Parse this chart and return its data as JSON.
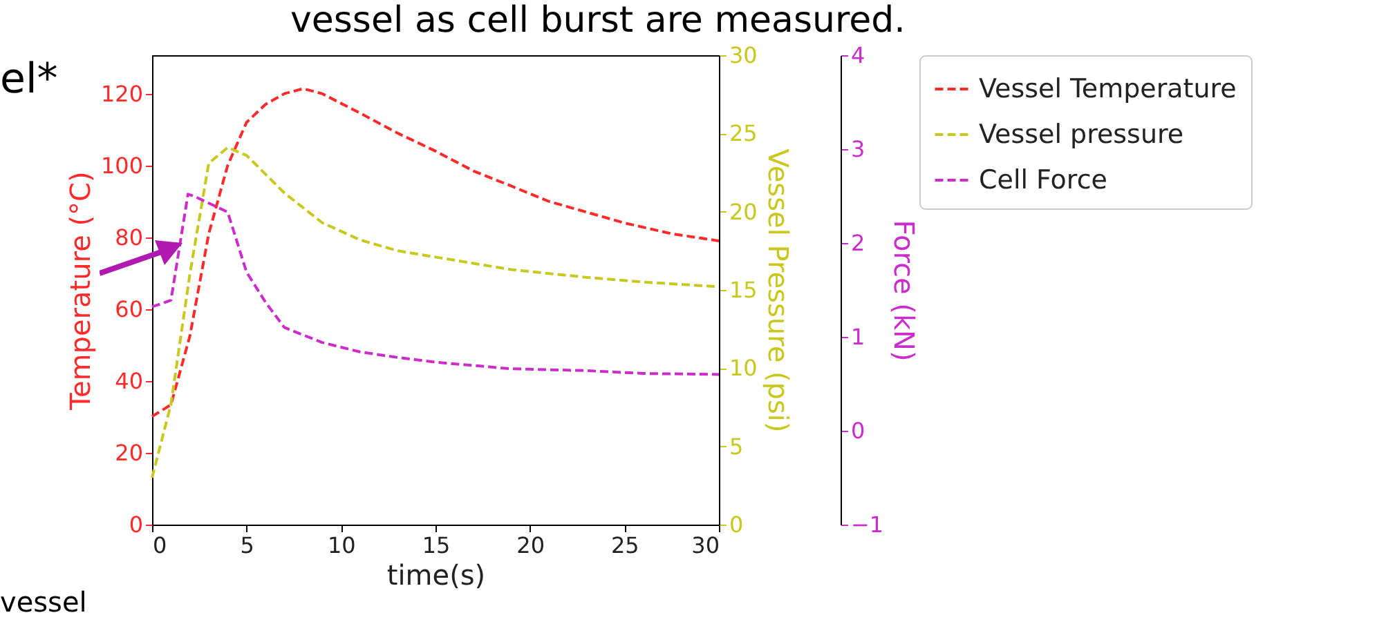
{
  "chart_data": {
    "type": "line",
    "xlabel": "time(s)",
    "ylabel": "Temperature (°C)",
    "y2label": "Vessel Pressure (psi)",
    "y3label": "Force (kN)",
    "xlim": [
      0,
      30
    ],
    "xticks": [
      0,
      5,
      10,
      15,
      20,
      25,
      30
    ],
    "ylim": [
      0,
      130.7
    ],
    "yticks": [
      0,
      20,
      40,
      60,
      80,
      100,
      120
    ],
    "y2lim": [
      0,
      30
    ],
    "y2ticks": [
      0,
      5,
      10,
      15,
      20,
      25,
      30
    ],
    "y3lim": [
      -1,
      4
    ],
    "y3ticks": [
      -1,
      0,
      1,
      2,
      3,
      4
    ],
    "grid": false,
    "legend": "top right",
    "line_style": "dashed",
    "marker": "none",
    "annotations": [
      "vessel as cell burst are measured.",
      "el*",
      "vessel"
    ],
    "series": [
      {
        "name": "Vessel Temperature",
        "color": "#ff2a2a",
        "x": [
          0,
          1,
          2,
          3,
          4,
          5,
          6,
          7,
          8,
          9,
          11,
          13,
          15,
          17,
          19,
          21,
          23,
          25,
          27.5,
          30
        ],
        "values": [
          30.1,
          33.4,
          52.5,
          81,
          100,
          112,
          117,
          120,
          121.4,
          120,
          114.6,
          109,
          104,
          98.5,
          94.3,
          90,
          87,
          84,
          81,
          79
        ]
      },
      {
        "name": "Vessel pressure",
        "color": "#c8c81e",
        "axis": "y2",
        "x": [
          0,
          1,
          2,
          3,
          4,
          5,
          7,
          9,
          11,
          13,
          15,
          19,
          23,
          26,
          30
        ],
        "values": [
          3.0,
          7.7,
          16,
          23.1,
          24.1,
          23.6,
          21.2,
          19.3,
          18.2,
          17.5,
          17.1,
          16.3,
          15.8,
          15.5,
          15.2
        ]
      },
      {
        "name": "Cell Force",
        "color": "#cc2ccc",
        "axis": "y3",
        "x": [
          0,
          1,
          1.9,
          2.2,
          4,
          5,
          6,
          7,
          9,
          11,
          13,
          15,
          19,
          23,
          26,
          30
        ],
        "values": [
          1.32,
          1.39,
          2.52,
          2.5,
          2.33,
          1.69,
          1.37,
          1.1,
          0.94,
          0.84,
          0.78,
          0.73,
          0.66,
          0.64,
          0.61,
          0.6
        ]
      }
    ]
  }
}
